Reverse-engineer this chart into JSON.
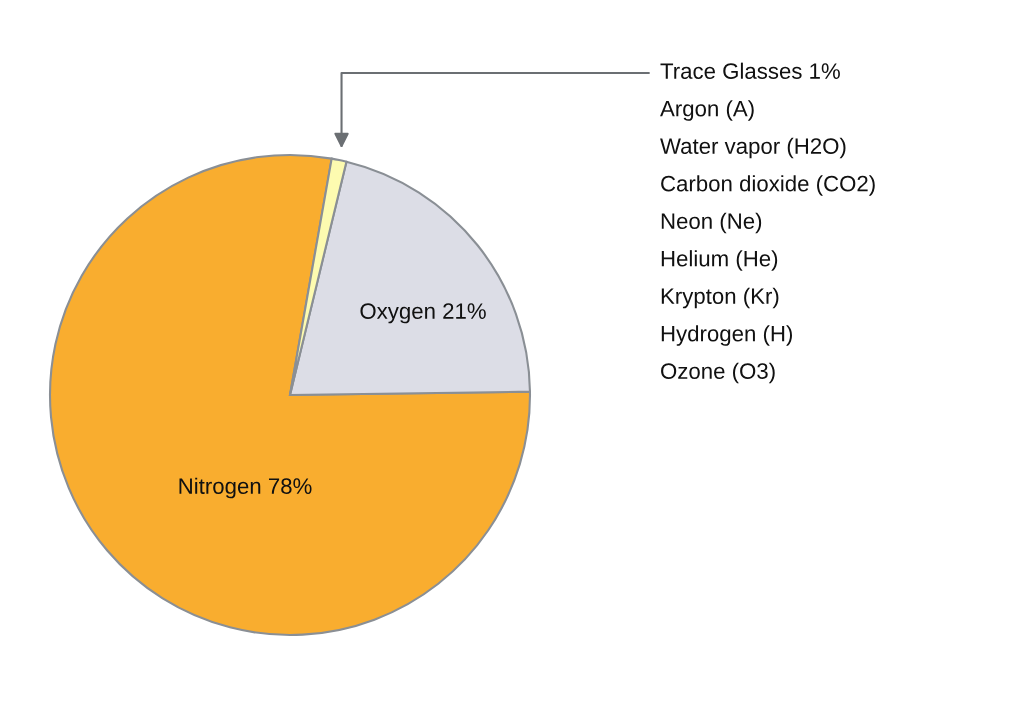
{
  "chart_data": {
    "type": "pie",
    "categories": [
      "Nitrogen",
      "Oxygen",
      "Trace Glasses"
    ],
    "values": [
      78,
      21,
      1
    ],
    "value_labels": [
      "78%",
      "21%",
      "1%"
    ],
    "colors": [
      "#f9ad2f",
      "#dcdde6",
      "#fdfbb0"
    ],
    "annotations": [
      "Argon (A)",
      "Water vapor (H2O)",
      "Carbon dioxide (CO2)",
      "Neon (Ne)",
      "Helium (He)",
      "Krypton (Kr)",
      "Hydrogen (H)",
      "Ozone (O3)"
    ],
    "legend": false
  }
}
